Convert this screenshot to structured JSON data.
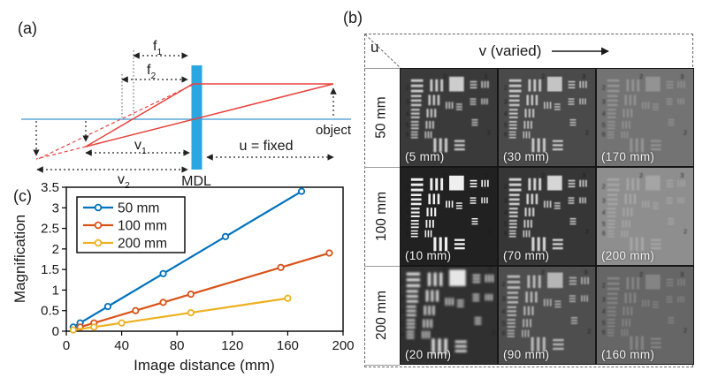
{
  "panel_a": {
    "label": "(a)",
    "f1": {
      "base": "f",
      "sub": "1"
    },
    "f2": {
      "base": "f",
      "sub": "2"
    },
    "v1": {
      "base": "v",
      "sub": "1"
    },
    "v2": {
      "base": "v",
      "sub": "2"
    },
    "object_label": "object",
    "u_label": "u = fixed",
    "lens_label": "MDL",
    "colors": {
      "optical_axis": "#5ba9da",
      "ray": "#e8423d",
      "lens": "#2aa6e0",
      "dimension": "#222222"
    }
  },
  "panel_b": {
    "label": "(b)",
    "corner_label": "u",
    "header_label": "v (varied)",
    "target_digits": [
      "2",
      "3",
      "2"
    ],
    "rows": [
      {
        "u_label": "50 mm",
        "cells": [
          {
            "v_label": "(5 mm)",
            "bg": "#3a3a3a",
            "fg": "#cdcdcd",
            "blur": 0.7,
            "scale": 1
          },
          {
            "v_label": "(30 mm)",
            "bg": "#4a4a4a",
            "fg": "#c4c4c4",
            "blur": 0.6,
            "scale": 1
          },
          {
            "v_label": "(170 mm)",
            "bg": "#737373",
            "fg": "#939393",
            "blur": 0.7,
            "scale": 1
          }
        ]
      },
      {
        "u_label": "100 mm",
        "cells": [
          {
            "v_label": "(10 mm)",
            "bg": "#212121",
            "fg": "#efefef",
            "blur": 0.4,
            "scale": 1
          },
          {
            "v_label": "(70 mm)",
            "bg": "#363636",
            "fg": "#d6d6d6",
            "blur": 0.5,
            "scale": 1
          },
          {
            "v_label": "(200 mm)",
            "bg": "#8e8e8e",
            "fg": "#a5a5a5",
            "blur": 0.8,
            "scale": 1
          }
        ]
      },
      {
        "u_label": "200 mm",
        "cells": [
          {
            "v_label": "(20 mm)",
            "bg": "#303030",
            "fg": "#e6e6e6",
            "blur": 1.1,
            "scale": 1.12
          },
          {
            "v_label": "(90 mm)",
            "bg": "#4e4e4e",
            "fg": "#b5b5b5",
            "blur": 0.8,
            "scale": 1.05
          },
          {
            "v_label": "(160 mm)",
            "bg": "#666666",
            "fg": "#848484",
            "blur": 0.9,
            "scale": 1
          }
        ]
      }
    ]
  },
  "panel_c_label": "(c)",
  "chart_data": {
    "type": "line",
    "title": "",
    "xlabel": "Image distance (mm)",
    "ylabel": "Magnification",
    "xlim": [
      0,
      200
    ],
    "ylim": [
      0,
      3.5
    ],
    "xticks": [
      0,
      40,
      80,
      120,
      160,
      200
    ],
    "yticks": [
      0,
      0.5,
      1,
      1.5,
      2,
      2.5,
      3,
      3.5
    ],
    "grid": false,
    "legend_position": "upper-left",
    "marker": "open-circle",
    "series": [
      {
        "name": "50 mm",
        "color": "#0072BD",
        "x": [
          5,
          10,
          30,
          70,
          115,
          170
        ],
        "y": [
          0.1,
          0.2,
          0.6,
          1.4,
          2.3,
          3.4
        ]
      },
      {
        "name": "100 mm",
        "color": "#D95319",
        "x": [
          10,
          20,
          50,
          70,
          90,
          155,
          190
        ],
        "y": [
          0.1,
          0.2,
          0.5,
          0.7,
          0.9,
          1.55,
          1.9
        ]
      },
      {
        "name": "200 mm",
        "color": "#EDB120",
        "x": [
          5,
          20,
          40,
          90,
          160
        ],
        "y": [
          0.03,
          0.1,
          0.2,
          0.45,
          0.8
        ]
      }
    ]
  }
}
